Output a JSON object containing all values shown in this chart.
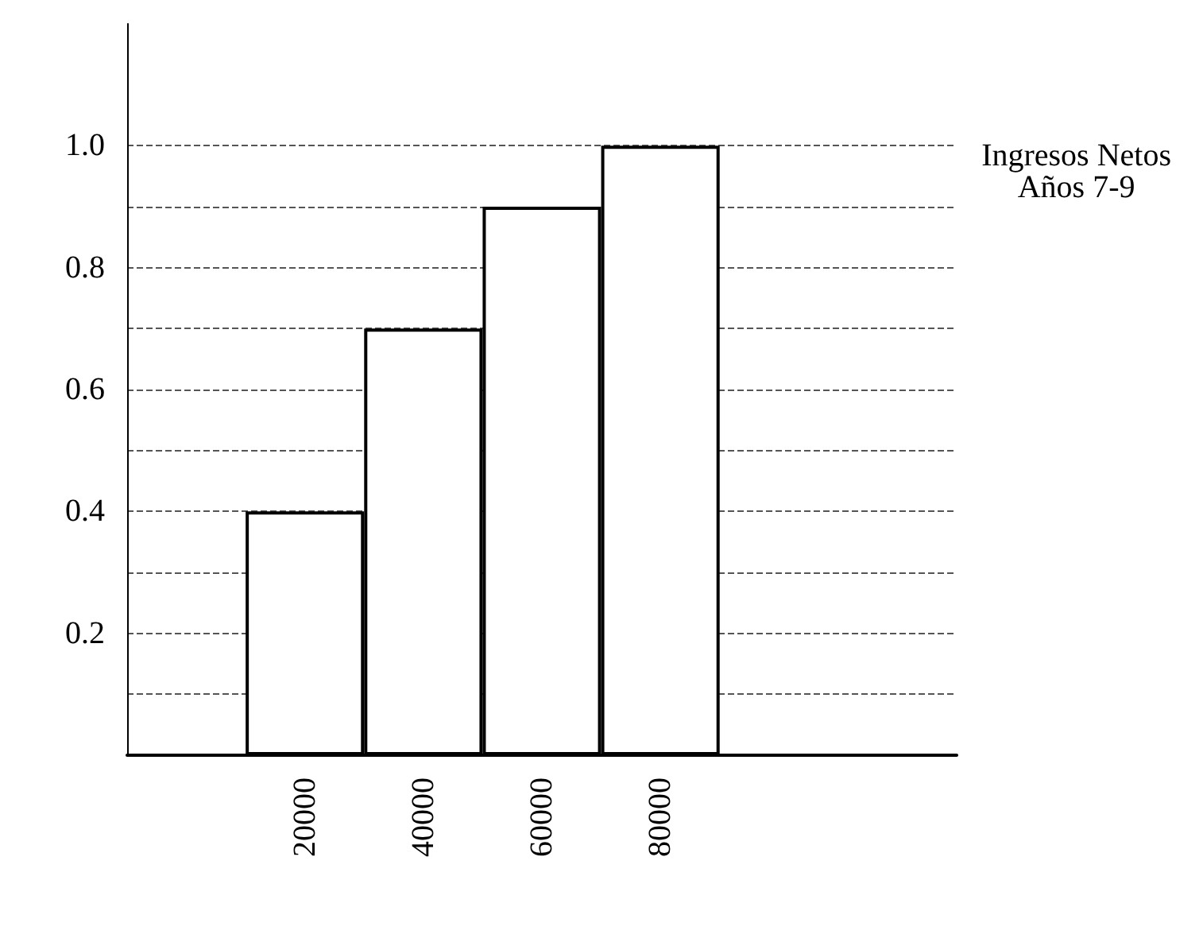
{
  "chart_data": {
    "type": "bar",
    "categories": [
      null,
      "20000",
      "40000",
      "60000",
      "80000",
      null,
      null
    ],
    "values": [
      null,
      0.4,
      0.7,
      0.9,
      1.0,
      null,
      null
    ],
    "color": "#ffffff",
    "ylim": [
      0,
      1.2
    ],
    "yticks": [
      {
        "value": 0.1,
        "label": null
      },
      0.2,
      {
        "value": 0.3,
        "label": null
      },
      0.4,
      {
        "value": 0.5,
        "label": null
      },
      0.6,
      {
        "value": 0.7,
        "label": null
      },
      0.8,
      {
        "value": 0.9,
        "label": null
      },
      {
        "value": 1.0,
        "label": "1.0"
      }
    ],
    "grid": "y",
    "annotations": [
      "Ingresos Netos\nAños 7-9"
    ]
  }
}
